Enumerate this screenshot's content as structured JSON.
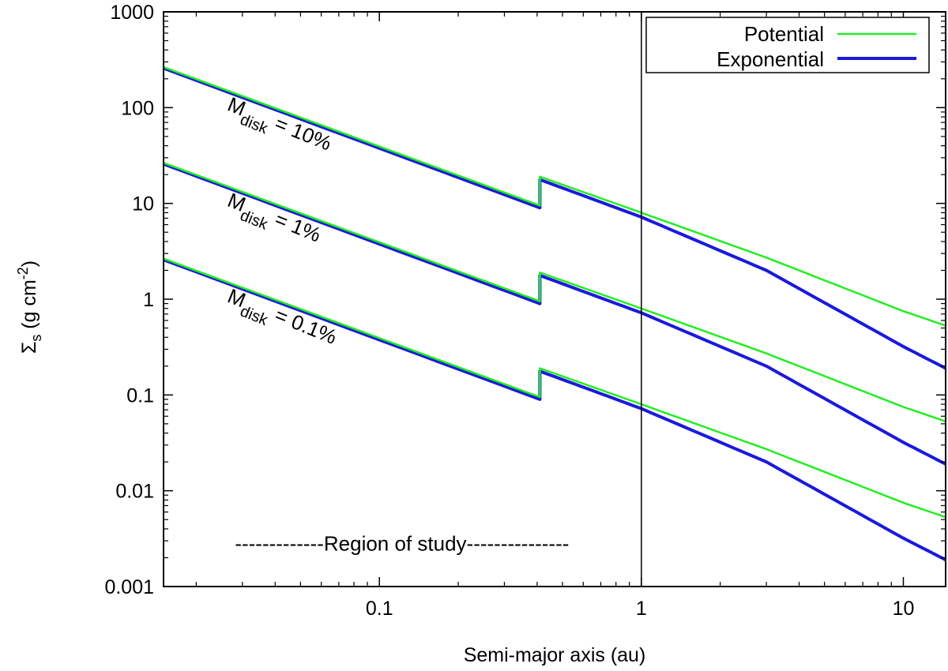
{
  "chart_data": {
    "type": "line",
    "title": "",
    "xlabel": "Semi-major axis (au)",
    "ylabel": "Σs (g cm-2)",
    "ylabel_parts": {
      "sym": "Σ",
      "sub": "s",
      "unit": " (g cm",
      "sup": "-2",
      "end": ")"
    },
    "xscale": "log",
    "yscale": "log",
    "xlim": [
      0.015,
      14.5
    ],
    "ylim": [
      0.001,
      1000
    ],
    "x_ticks": [
      {
        "value": 0.1,
        "label": "0.1"
      },
      {
        "value": 1,
        "label": "1"
      },
      {
        "value": 10,
        "label": "10"
      }
    ],
    "y_ticks": [
      {
        "value": 1000,
        "label": "1000"
      },
      {
        "value": 100,
        "label": "100"
      },
      {
        "value": 10,
        "label": "10"
      },
      {
        "value": 1,
        "label": "1"
      },
      {
        "value": 0.1,
        "label": "0.1"
      },
      {
        "value": 0.01,
        "label": "0.01"
      },
      {
        "value": 0.001,
        "label": "0.001"
      }
    ],
    "grid": false,
    "legend_position": "top-right",
    "colors": {
      "potential": "#22ee22",
      "exponential": "#1a1adb",
      "axis": "#000000"
    },
    "series": [
      {
        "name": "Potential",
        "model": "power-law",
        "x": [
          0.015,
          0.41,
          0.41,
          1,
          3,
          10,
          14.5
        ],
        "disks": [
          {
            "mass": "10%",
            "y": [
              265,
              9.5,
              19.0,
              8.0,
              2.72,
              0.75,
              0.53
            ]
          },
          {
            "mass": "1%",
            "y": [
              26.5,
              0.95,
              1.9,
              0.8,
              0.272,
              0.075,
              0.053
            ]
          },
          {
            "mass": "0.1%",
            "y": [
              2.65,
              0.095,
              0.19,
              0.08,
              0.0272,
              0.0075,
              0.0053
            ]
          }
        ]
      },
      {
        "name": "Exponential",
        "model": "exponential-taper",
        "x": [
          0.015,
          0.41,
          0.41,
          1,
          3,
          10,
          14.5
        ],
        "disks": [
          {
            "mass": "10%",
            "y": [
              258,
              9.0,
              17.7,
              7.2,
              2.0,
              0.32,
              0.19
            ]
          },
          {
            "mass": "1%",
            "y": [
              25.8,
              0.9,
              1.77,
              0.72,
              0.2,
              0.032,
              0.019
            ]
          },
          {
            "mass": "0.1%",
            "y": [
              2.58,
              0.09,
              0.177,
              0.072,
              0.02,
              0.0032,
              0.0019
            ]
          }
        ]
      }
    ],
    "vline": {
      "x": 1
    },
    "annotations": [
      {
        "id": "m10",
        "prefix": "M",
        "sub": "disk",
        "text": " = 10%",
        "anchor": {
          "x": 0.026,
          "y": 95
        }
      },
      {
        "id": "m1",
        "prefix": "M",
        "sub": "disk",
        "text": " = 1%",
        "anchor": {
          "x": 0.026,
          "y": 9.5
        }
      },
      {
        "id": "m01",
        "prefix": "M",
        "sub": "disk",
        "text": " = 0.1%",
        "anchor": {
          "x": 0.026,
          "y": 0.95
        }
      }
    ],
    "region": {
      "label": "-------------Region of study---------------",
      "anchor": {
        "x": 0.122,
        "y": 0.0028
      }
    }
  }
}
